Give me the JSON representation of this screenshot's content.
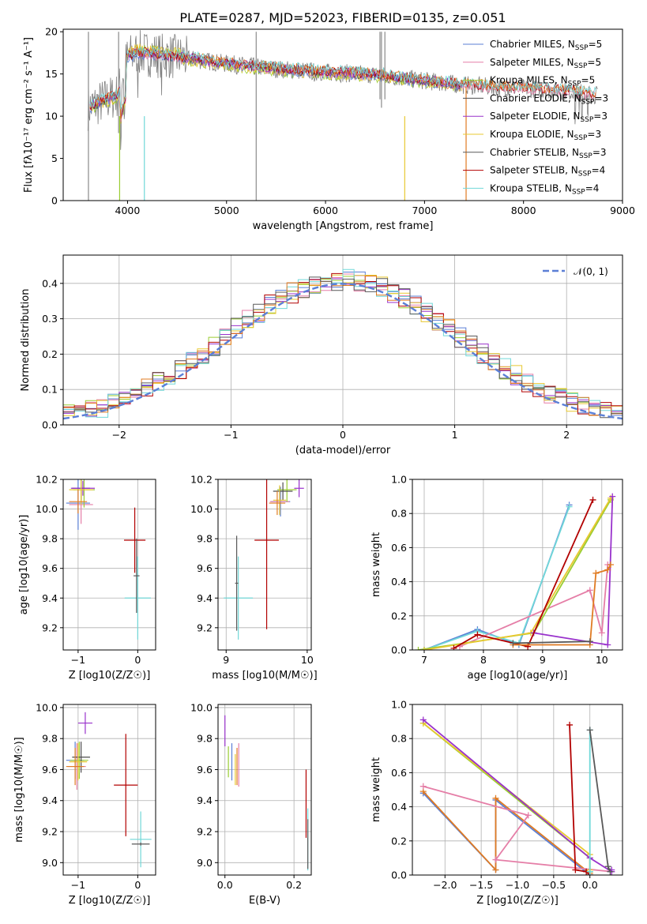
{
  "colors": [
    "#5b7fd6",
    "#e57ea7",
    "#9acd32",
    "#4d4d4d",
    "#9932cc",
    "#e8c830",
    "#595959",
    "#b20000",
    "#70d8d8",
    "#e07b22"
  ],
  "chart_data": [
    {
      "id": "spectrum",
      "type": "line",
      "title": "PLATE=0287, MJD=52023, FIBERID=0135, z=0.051",
      "xlabel": "wavelength [Angstrom, rest frame]",
      "ylabel": "Flux [fλ10⁻¹⁷ erg cm⁻² s⁻¹ A⁻¹]",
      "xlim": [
        3350,
        9000
      ],
      "ylim": [
        0,
        20.3
      ],
      "xticks": [
        "4000",
        "5000",
        "6000",
        "7000",
        "8000",
        "9000"
      ],
      "yticks": [
        "0",
        "5",
        "10",
        "15",
        "20"
      ],
      "legend_position": "upper right",
      "series": [
        {
          "name": "Chabrier MILES, N_SSP=5",
          "legend": "Chabrier MILES, N",
          "sub": "SSP",
          "suffix": "=5"
        },
        {
          "name": "Salpeter MILES, N_SSP=5",
          "legend": "Salpeter MILES, N",
          "sub": "SSP",
          "suffix": "=5"
        },
        {
          "name": "Kroupa MILES, N_SSP=5",
          "legend": "Kroupa MILES, N",
          "sub": "SSP",
          "suffix": "=5"
        },
        {
          "name": "Chabrier ELODIE, N_SSP=3",
          "legend": "Chabrier ELODIE, N",
          "sub": "SSP",
          "suffix": "=3"
        },
        {
          "name": "Salpeter ELODIE, N_SSP=3",
          "legend": "Salpeter ELODIE, N",
          "sub": "SSP",
          "suffix": "=3"
        },
        {
          "name": "Kroupa ELODIE, N_SSP=3",
          "legend": "Kroupa ELODIE, N",
          "sub": "SSP",
          "suffix": "=3"
        },
        {
          "name": "Chabrier STELIB, N_SSP=3",
          "legend": "Chabrier STELIB, N",
          "sub": "SSP",
          "suffix": "=3"
        },
        {
          "name": "Salpeter STELIB, N_SSP=4",
          "legend": "Salpeter STELIB, N",
          "sub": "SSP",
          "suffix": "=4"
        },
        {
          "name": "Kroupa STELIB, N_SSP=4",
          "legend": "Kroupa STELIB, N",
          "sub": "SSP",
          "suffix": "=4"
        }
      ],
      "spectrum_profile": {
        "x": [
          3600,
          3900,
          4000,
          4100,
          4500,
          5000,
          5500,
          6000,
          6500,
          7000,
          7300,
          7500,
          8000,
          8500,
          8750
        ],
        "y": [
          11,
          12.5,
          17,
          17.5,
          17,
          16.2,
          15.6,
          15.2,
          14.9,
          14.2,
          13.8,
          13.6,
          13.3,
          12.9,
          12.5
        ]
      }
    },
    {
      "id": "residuals",
      "type": "step",
      "xlabel": "(data-model)/error",
      "ylabel": "Normed distribution",
      "xlim": [
        -2.5,
        2.5
      ],
      "ylim": [
        0,
        0.48
      ],
      "xticks": [
        "−2",
        "−1",
        "0",
        "1",
        "2"
      ],
      "yticks": [
        "0.0",
        "0.1",
        "0.2",
        "0.3",
        "0.4"
      ],
      "legend": "𝒩(0, 1)",
      "gaussian": {
        "mean": 0,
        "sigma": 1,
        "peak": 0.399
      }
    },
    {
      "id": "age_vs_Z",
      "type": "errorbar",
      "xlabel": "Z [log10(Z/Z☉)]",
      "ylabel": "age  [log10(age/yr)]",
      "xlim": [
        -1.25,
        0.3
      ],
      "ylim": [
        9.05,
        10.2
      ],
      "xticks": [
        "−1",
        "0"
      ],
      "yticks": [
        "9.2",
        "9.4",
        "9.6",
        "9.8",
        "10.0",
        "10.2"
      ],
      "points": [
        {
          "x": -1.0,
          "y": 10.04,
          "xerr": 0.2,
          "yerr": 0.18,
          "c": 0
        },
        {
          "x": -0.95,
          "y": 10.03,
          "xerr": 0.2,
          "yerr": 0.13,
          "c": 1
        },
        {
          "x": -0.9,
          "y": 10.13,
          "xerr": 0.18,
          "yerr": 0.12,
          "c": 2
        },
        {
          "x": -0.95,
          "y": 10.14,
          "xerr": 0.15,
          "yerr": 0.08,
          "c": 3
        },
        {
          "x": -0.92,
          "y": 10.14,
          "xerr": 0.2,
          "yerr": 0.05,
          "c": 4
        },
        {
          "x": -0.95,
          "y": 10.13,
          "xerr": 0.2,
          "yerr": 0.1,
          "c": 5
        },
        {
          "x": -1.0,
          "y": 10.05,
          "xerr": 0.15,
          "yerr": 0.08,
          "c": 9
        },
        {
          "x": -0.05,
          "y": 9.79,
          "xerr": 0.18,
          "yerr": 0.22,
          "c": 7
        },
        {
          "x": 0.0,
          "y": 9.4,
          "xerr": 0.22,
          "yerr": 0.28,
          "c": 8
        },
        {
          "x": -0.02,
          "y": 9.55,
          "xerr": 0.05,
          "yerr": 0.25,
          "c": 6
        }
      ]
    },
    {
      "id": "age_vs_mass",
      "type": "errorbar",
      "xlabel": "mass [log10(M/M☉)]",
      "ylabel": "",
      "xlim": [
        8.9,
        10.05
      ],
      "ylim": [
        9.05,
        10.2
      ],
      "xticks": [
        "9",
        "10"
      ],
      "yticks": [
        "9.2",
        "9.4",
        "9.6",
        "9.8",
        "10.0",
        "10.2"
      ],
      "points": [
        {
          "x": 9.67,
          "y": 10.05,
          "xerr": 0.12,
          "yerr": 0.1,
          "c": 0
        },
        {
          "x": 9.66,
          "y": 10.05,
          "xerr": 0.12,
          "yerr": 0.08,
          "c": 1
        },
        {
          "x": 9.75,
          "y": 10.13,
          "xerr": 0.12,
          "yerr": 0.08,
          "c": 2
        },
        {
          "x": 9.7,
          "y": 10.12,
          "xerr": 0.12,
          "yerr": 0.06,
          "c": 3
        },
        {
          "x": 9.9,
          "y": 10.14,
          "xerr": 0.06,
          "yerr": 0.06,
          "c": 4
        },
        {
          "x": 9.66,
          "y": 10.06,
          "xerr": 0.08,
          "yerr": 0.1,
          "c": 5
        },
        {
          "x": 9.63,
          "y": 10.04,
          "xerr": 0.1,
          "yerr": 0.08,
          "c": 9
        },
        {
          "x": 9.5,
          "y": 9.79,
          "xerr": 0.15,
          "yerr": 0.6,
          "c": 7
        },
        {
          "x": 9.15,
          "y": 9.4,
          "xerr": 0.18,
          "yerr": 0.28,
          "c": 8
        },
        {
          "x": 9.13,
          "y": 9.5,
          "xerr": 0.02,
          "yerr": 0.32,
          "c": 6
        }
      ]
    },
    {
      "id": "mass_weight_vs_age",
      "type": "line",
      "xlabel": "age  [log10(age/yr)]",
      "ylabel": "mass weight",
      "xlim": [
        6.8,
        10.35
      ],
      "ylim": [
        0,
        1.0
      ],
      "xticks": [
        "7",
        "8",
        "9",
        "10"
      ],
      "yticks": [
        "0.0",
        "0.2",
        "0.4",
        "0.6",
        "0.8",
        "1.0"
      ],
      "series": [
        {
          "c": 0,
          "x": [
            7.0,
            7.9,
            8.6,
            9.45
          ],
          "y": [
            0.0,
            0.12,
            0.03,
            0.85
          ]
        },
        {
          "c": 8,
          "x": [
            7.0,
            7.9,
            8.6,
            9.45
          ],
          "y": [
            0.0,
            0.11,
            0.04,
            0.84
          ]
        },
        {
          "c": 1,
          "x": [
            7.6,
            9.8,
            10.0,
            10.1
          ],
          "y": [
            0.02,
            0.35,
            0.1,
            0.5
          ]
        },
        {
          "c": 2,
          "x": [
            6.9,
            8.85,
            10.15
          ],
          "y": [
            0.0,
            0.1,
            0.88
          ]
        },
        {
          "c": 5,
          "x": [
            7.0,
            8.8,
            10.15
          ],
          "y": [
            0.0,
            0.1,
            0.89
          ]
        },
        {
          "c": 4,
          "x": [
            8.85,
            10.1,
            10.18
          ],
          "y": [
            0.1,
            0.03,
            0.9
          ]
        },
        {
          "c": 7,
          "x": [
            7.5,
            7.9,
            8.75,
            9.85
          ],
          "y": [
            0.01,
            0.09,
            0.02,
            0.88
          ]
        },
        {
          "c": 9,
          "x": [
            8.5,
            9.8,
            9.9,
            10.1,
            10.15
          ],
          "y": [
            0.03,
            0.03,
            0.45,
            0.47,
            0.5
          ]
        },
        {
          "c": 6,
          "x": [
            8.5,
            9.8
          ],
          "y": [
            0.04,
            0.05
          ]
        }
      ]
    },
    {
      "id": "mass_vs_Z",
      "type": "errorbar",
      "xlabel": "Z [log10(Z/Z☉)]",
      "ylabel": "mass [log10(M/M☉)]",
      "xlim": [
        -1.25,
        0.3
      ],
      "ylim": [
        8.92,
        10.02
      ],
      "xticks": [
        "−1",
        "0"
      ],
      "yticks": [
        "9.0",
        "9.2",
        "9.4",
        "9.6",
        "9.8",
        "10.0"
      ],
      "points": [
        {
          "x": -1.05,
          "y": 9.66,
          "xerr": 0.15,
          "yerr": 0.12,
          "c": 0
        },
        {
          "x": -1.02,
          "y": 9.62,
          "xerr": 0.15,
          "yerr": 0.15,
          "c": 1
        },
        {
          "x": -0.98,
          "y": 9.66,
          "xerr": 0.15,
          "yerr": 0.12,
          "c": 2
        },
        {
          "x": -0.95,
          "y": 9.68,
          "xerr": 0.15,
          "yerr": 0.1,
          "c": 3
        },
        {
          "x": -0.88,
          "y": 9.9,
          "xerr": 0.12,
          "yerr": 0.07,
          "c": 4
        },
        {
          "x": -1.0,
          "y": 9.65,
          "xerr": 0.15,
          "yerr": 0.12,
          "c": 5
        },
        {
          "x": -1.05,
          "y": 9.62,
          "xerr": 0.15,
          "yerr": 0.12,
          "c": 9
        },
        {
          "x": -0.2,
          "y": 9.5,
          "xerr": 0.2,
          "yerr": 0.33,
          "c": 7
        },
        {
          "x": 0.05,
          "y": 9.15,
          "xerr": 0.18,
          "yerr": 0.18,
          "c": 8
        },
        {
          "x": 0.05,
          "y": 9.12,
          "xerr": 0.15,
          "yerr": 0.01,
          "c": 6
        }
      ]
    },
    {
      "id": "mass_vs_ebv",
      "type": "errorbar",
      "xlabel": "E(B-V)",
      "ylabel": "",
      "xlim": [
        -0.02,
        0.25
      ],
      "ylim": [
        8.92,
        10.02
      ],
      "xticks": [
        "0.0",
        "0.2"
      ],
      "yticks": [
        "9.0",
        "9.2",
        "9.4",
        "9.6",
        "9.8",
        "10.0"
      ],
      "points": [
        {
          "x": 0.02,
          "y": 9.65,
          "xerr": 0.0,
          "yerr": 0.12,
          "c": 0
        },
        {
          "x": 0.04,
          "y": 9.63,
          "xerr": 0.0,
          "yerr": 0.14,
          "c": 1
        },
        {
          "x": 0.01,
          "y": 9.65,
          "xerr": 0.0,
          "yerr": 0.1,
          "c": 2
        },
        {
          "x": 0.0,
          "y": 9.85,
          "xerr": 0.0,
          "yerr": 0.1,
          "c": 4
        },
        {
          "x": 0.03,
          "y": 9.6,
          "xerr": 0.0,
          "yerr": 0.1,
          "c": 5
        },
        {
          "x": 0.035,
          "y": 9.62,
          "xerr": 0.0,
          "yerr": 0.12,
          "c": 9
        },
        {
          "x": 0.235,
          "y": 9.38,
          "xerr": 0.0,
          "yerr": 0.22,
          "c": 7
        },
        {
          "x": 0.24,
          "y": 9.15,
          "xerr": 0.0,
          "yerr": 0.2,
          "c": 8
        },
        {
          "x": 0.24,
          "y": 9.12,
          "xerr": 0.0,
          "yerr": 0.16,
          "c": 6
        }
      ]
    },
    {
      "id": "mass_weight_vs_Z",
      "type": "line",
      "xlabel": "Z [log10(Z/Z☉)]",
      "ylabel": "mass weight",
      "xlim": [
        -2.45,
        0.45
      ],
      "ylim": [
        0,
        1.0
      ],
      "xticks": [
        "−2.0",
        "−1.5",
        "−1.0",
        "−0.5",
        "0.0"
      ],
      "yticks": [
        "0.0",
        "0.2",
        "0.4",
        "0.6",
        "0.8",
        "1.0"
      ],
      "series": [
        {
          "c": 0,
          "x": [
            -2.3,
            -1.3,
            -1.3,
            0.0
          ],
          "y": [
            0.48,
            0.03,
            0.44,
            0.0
          ]
        },
        {
          "c": 9,
          "x": [
            -2.3,
            -1.3,
            -1.3,
            0.0
          ],
          "y": [
            0.49,
            0.03,
            0.45,
            0.01
          ]
        },
        {
          "c": 1,
          "x": [
            -2.3,
            -0.85,
            -1.3,
            0.3
          ],
          "y": [
            0.52,
            0.35,
            0.09,
            0.02
          ]
        },
        {
          "c": 2,
          "x": [
            -2.3,
            0.0,
            0.0
          ],
          "y": [
            0.89,
            0.1,
            0.02
          ]
        },
        {
          "c": 5,
          "x": [
            -2.3,
            0.0,
            0.0
          ],
          "y": [
            0.89,
            0.12,
            0.03
          ]
        },
        {
          "c": 4,
          "x": [
            -2.3,
            0.0,
            0.3,
            0.3
          ],
          "y": [
            0.91,
            0.1,
            0.02,
            0.03
          ]
        },
        {
          "c": 7,
          "x": [
            -0.28,
            -0.2,
            -0.05,
            0.0
          ],
          "y": [
            0.88,
            0.03,
            0.02,
            0.0
          ]
        },
        {
          "c": 8,
          "x": [
            0.0,
            0.0,
            0.0
          ],
          "y": [
            0.85,
            0.0,
            0.02
          ]
        },
        {
          "c": 6,
          "x": [
            0.0,
            0.25,
            0.28
          ],
          "y": [
            0.85,
            0.05,
            0.02
          ]
        }
      ]
    }
  ]
}
